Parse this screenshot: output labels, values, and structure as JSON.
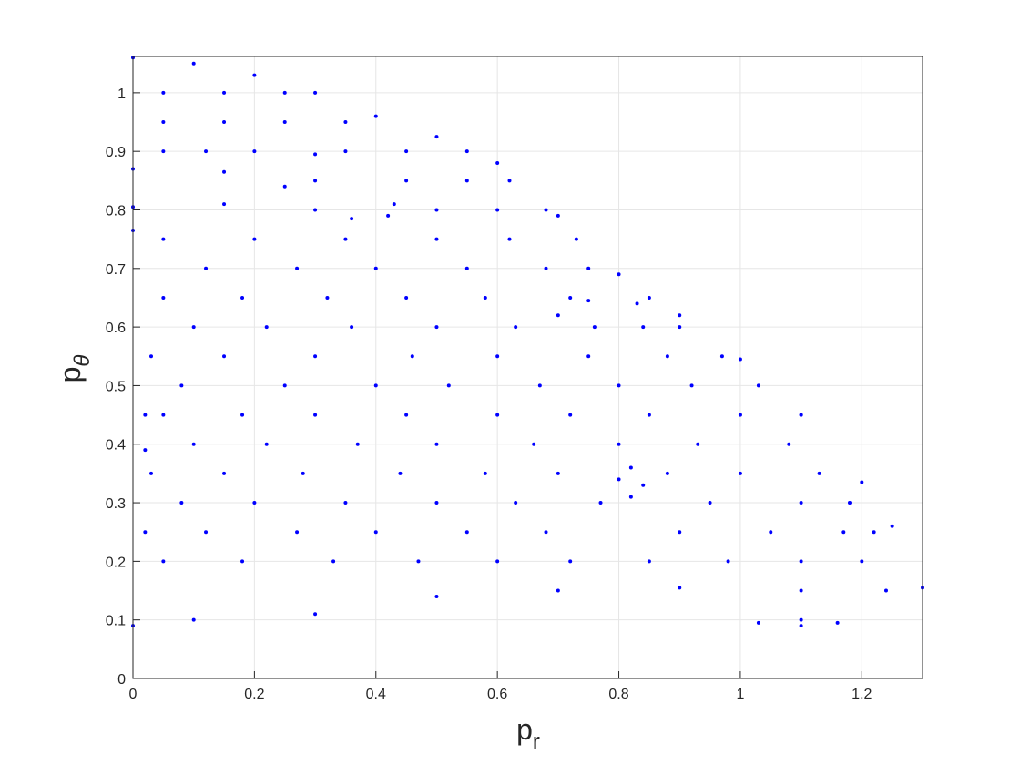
{
  "chart_data": {
    "type": "scatter",
    "xlabel": "p",
    "xlabel_sub": "r",
    "ylabel": "p",
    "ylabel_sub": "θ",
    "xlim": [
      0,
      1.3
    ],
    "ylim": [
      0,
      1.062
    ],
    "xticks": [
      0,
      0.2,
      0.4,
      0.6,
      0.8,
      1,
      1.2
    ],
    "yticks": [
      0,
      0.1,
      0.2,
      0.3,
      0.4,
      0.5,
      0.6,
      0.7,
      0.8,
      0.9,
      1
    ],
    "grid": true,
    "series": [
      {
        "color": "#0000ff",
        "x": [
          0,
          0.1,
          0.2,
          0.3,
          0.4,
          0.5,
          0.6,
          0.7,
          0.8,
          0.9,
          1,
          1.1,
          1.2,
          1.25,
          1.3,
          0,
          0.1,
          0.3,
          0.5,
          0.7,
          0.9,
          1.1,
          1.24,
          0.05,
          0.18,
          0.33,
          0.47,
          0.6,
          0.72,
          0.85,
          0.98,
          1.1,
          1.2,
          0.02,
          0.12,
          0.27,
          0.4,
          0.55,
          0.68,
          0.9,
          1.05,
          1.17,
          1.22,
          0.08,
          0.2,
          0.35,
          0.5,
          0.63,
          0.77,
          0.95,
          1.1,
          1.18,
          0.03,
          0.15,
          0.28,
          0.44,
          0.58,
          0.7,
          0.88,
          1,
          1.13,
          0.1,
          0.22,
          0.37,
          0.5,
          0.66,
          0.8,
          0.93,
          1.08,
          0.05,
          0.18,
          0.3,
          0.45,
          0.6,
          0.72,
          0.85,
          1,
          1.1,
          0.08,
          0.25,
          0.4,
          0.52,
          0.67,
          0.8,
          0.92,
          1.03,
          0.03,
          0.15,
          0.3,
          0.46,
          0.6,
          0.75,
          0.88,
          0.97,
          0.1,
          0.22,
          0.36,
          0.5,
          0.63,
          0.9,
          0.05,
          0.18,
          0.32,
          0.45,
          0.58,
          0.72,
          0.85,
          0.12,
          0.27,
          0.4,
          0.55,
          0.68,
          0.75,
          0.2,
          0.35,
          0.5,
          0.62,
          0.73,
          0.3,
          0.5,
          0.6,
          0.68,
          0.3,
          0.45,
          0.55,
          0.62,
          0.05,
          0.12,
          0.35,
          0.45,
          0.55,
          0.05,
          0.15,
          0.25,
          0.35,
          0.05,
          0.15,
          0.25,
          0.7,
          0.75,
          0.83,
          0.84,
          0.76,
          0.8,
          0.82,
          0.84,
          0.82,
          0,
          0.15,
          0.25,
          0.15,
          0,
          1.03,
          1.1,
          1.16,
          1.1,
          0.36,
          0.43,
          0.42,
          0.2,
          0.3,
          0,
          0.05,
          0.02,
          0.02
        ],
        "y": [
          1.06,
          1.05,
          1.03,
          1,
          0.96,
          0.925,
          0.88,
          0.79,
          0.69,
          0.62,
          0.545,
          0.45,
          0.335,
          0.26,
          0.155,
          0.09,
          0.1,
          0.11,
          0.14,
          0.15,
          0.155,
          0.15,
          0.15,
          0.2,
          0.2,
          0.2,
          0.2,
          0.2,
          0.2,
          0.2,
          0.2,
          0.2,
          0.2,
          0.25,
          0.25,
          0.25,
          0.25,
          0.25,
          0.25,
          0.25,
          0.25,
          0.25,
          0.25,
          0.3,
          0.3,
          0.3,
          0.3,
          0.3,
          0.3,
          0.3,
          0.3,
          0.3,
          0.35,
          0.35,
          0.35,
          0.35,
          0.35,
          0.35,
          0.35,
          0.35,
          0.35,
          0.4,
          0.4,
          0.4,
          0.4,
          0.4,
          0.4,
          0.4,
          0.4,
          0.45,
          0.45,
          0.45,
          0.45,
          0.45,
          0.45,
          0.45,
          0.45,
          0.45,
          0.5,
          0.5,
          0.5,
          0.5,
          0.5,
          0.5,
          0.5,
          0.5,
          0.55,
          0.55,
          0.55,
          0.55,
          0.55,
          0.55,
          0.55,
          0.55,
          0.6,
          0.6,
          0.6,
          0.6,
          0.6,
          0.6,
          0.65,
          0.65,
          0.65,
          0.65,
          0.65,
          0.65,
          0.65,
          0.7,
          0.7,
          0.7,
          0.7,
          0.7,
          0.7,
          0.75,
          0.75,
          0.75,
          0.75,
          0.75,
          0.8,
          0.8,
          0.8,
          0.8,
          0.85,
          0.85,
          0.85,
          0.85,
          0.9,
          0.9,
          0.9,
          0.9,
          0.9,
          0.95,
          0.95,
          0.95,
          0.95,
          1,
          1,
          1,
          0.62,
          0.645,
          0.64,
          0.6,
          0.6,
          0.34,
          0.36,
          0.33,
          0.31,
          0.87,
          0.865,
          0.84,
          0.81,
          0.805,
          0.095,
          0.1,
          0.095,
          0.09,
          0.785,
          0.81,
          0.79,
          0.9,
          0.895,
          0.765,
          0.75,
          0.45,
          0.39
        ]
      }
    ]
  }
}
